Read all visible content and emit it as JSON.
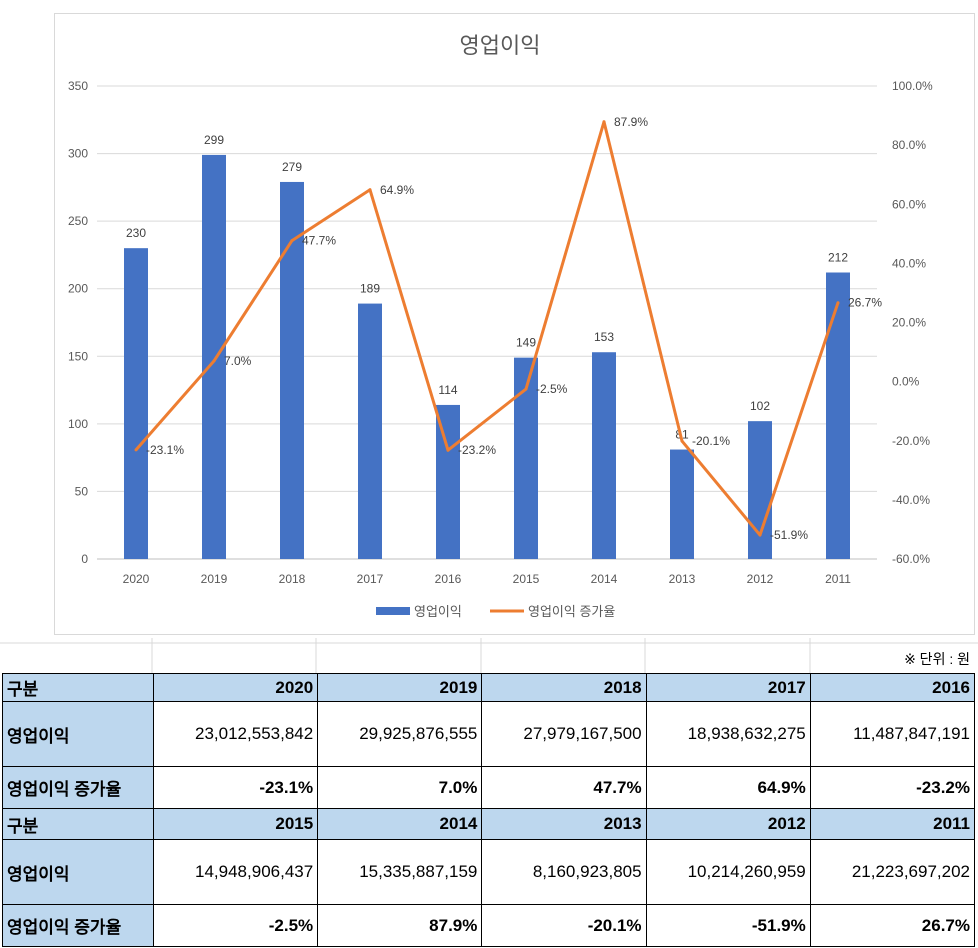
{
  "chart_data": {
    "type": "bar+line",
    "title": "영업이익",
    "categories": [
      "2020",
      "2019",
      "2018",
      "2017",
      "2016",
      "2015",
      "2014",
      "2013",
      "2012",
      "2011"
    ],
    "series": [
      {
        "name": "영업이익",
        "type": "bar",
        "axis": "left",
        "color": "#4472c4",
        "values": [
          230,
          299,
          279,
          189,
          114,
          149,
          153,
          81,
          102,
          212
        ],
        "labels": [
          "230",
          "299",
          "279",
          "189",
          "114",
          "149",
          "153",
          "81",
          "102",
          "212"
        ]
      },
      {
        "name": "영업이익 증가율",
        "type": "line",
        "axis": "right",
        "color": "#ed7d31",
        "values": [
          -23.1,
          7.0,
          47.7,
          64.9,
          -23.2,
          -2.5,
          87.9,
          -20.1,
          -51.9,
          26.7
        ],
        "labels": [
          "-23.1%",
          "7.0%",
          "47.7%",
          "64.9%",
          "-23.2%",
          "-2.5%",
          "87.9%",
          "-20.1%",
          "-51.9%",
          "26.7%"
        ]
      }
    ],
    "ylim": [
      0,
      350
    ],
    "yticks": [
      "0",
      "50",
      "100",
      "150",
      "200",
      "250",
      "300",
      "350"
    ],
    "y2lim": [
      -60,
      100
    ],
    "y2ticks": [
      "-60.0%",
      "-40.0%",
      "-20.0%",
      "0.0%",
      "20.0%",
      "40.0%",
      "60.0%",
      "80.0%",
      "100.0%"
    ],
    "grid": true,
    "legend_position": "bottom"
  },
  "note": "※ 단위 : 원",
  "table": {
    "blocks": [
      {
        "header": "구분",
        "years": [
          "2020",
          "2019",
          "2018",
          "2017",
          "2016"
        ],
        "rows": [
          {
            "label": "영업이익",
            "values": [
              "23,012,553,842",
              "29,925,876,555",
              "27,979,167,500",
              "18,938,632,275",
              "11,487,847,191"
            ]
          },
          {
            "label": "영업이익 증가율",
            "values": [
              "-23.1%",
              "7.0%",
              "47.7%",
              "64.9%",
              "-23.2%"
            ]
          }
        ]
      },
      {
        "header": "구분",
        "years": [
          "2015",
          "2014",
          "2013",
          "2012",
          "2011"
        ],
        "rows": [
          {
            "label": "영업이익",
            "values": [
              "14,948,906,437",
              "15,335,887,159",
              "8,160,923,805",
              "10,214,260,959",
              "21,223,697,202"
            ]
          },
          {
            "label": "영업이익 증가율",
            "values": [
              "-2.5%",
              "87.9%",
              "-20.1%",
              "-51.9%",
              "26.7%"
            ]
          }
        ]
      }
    ]
  }
}
